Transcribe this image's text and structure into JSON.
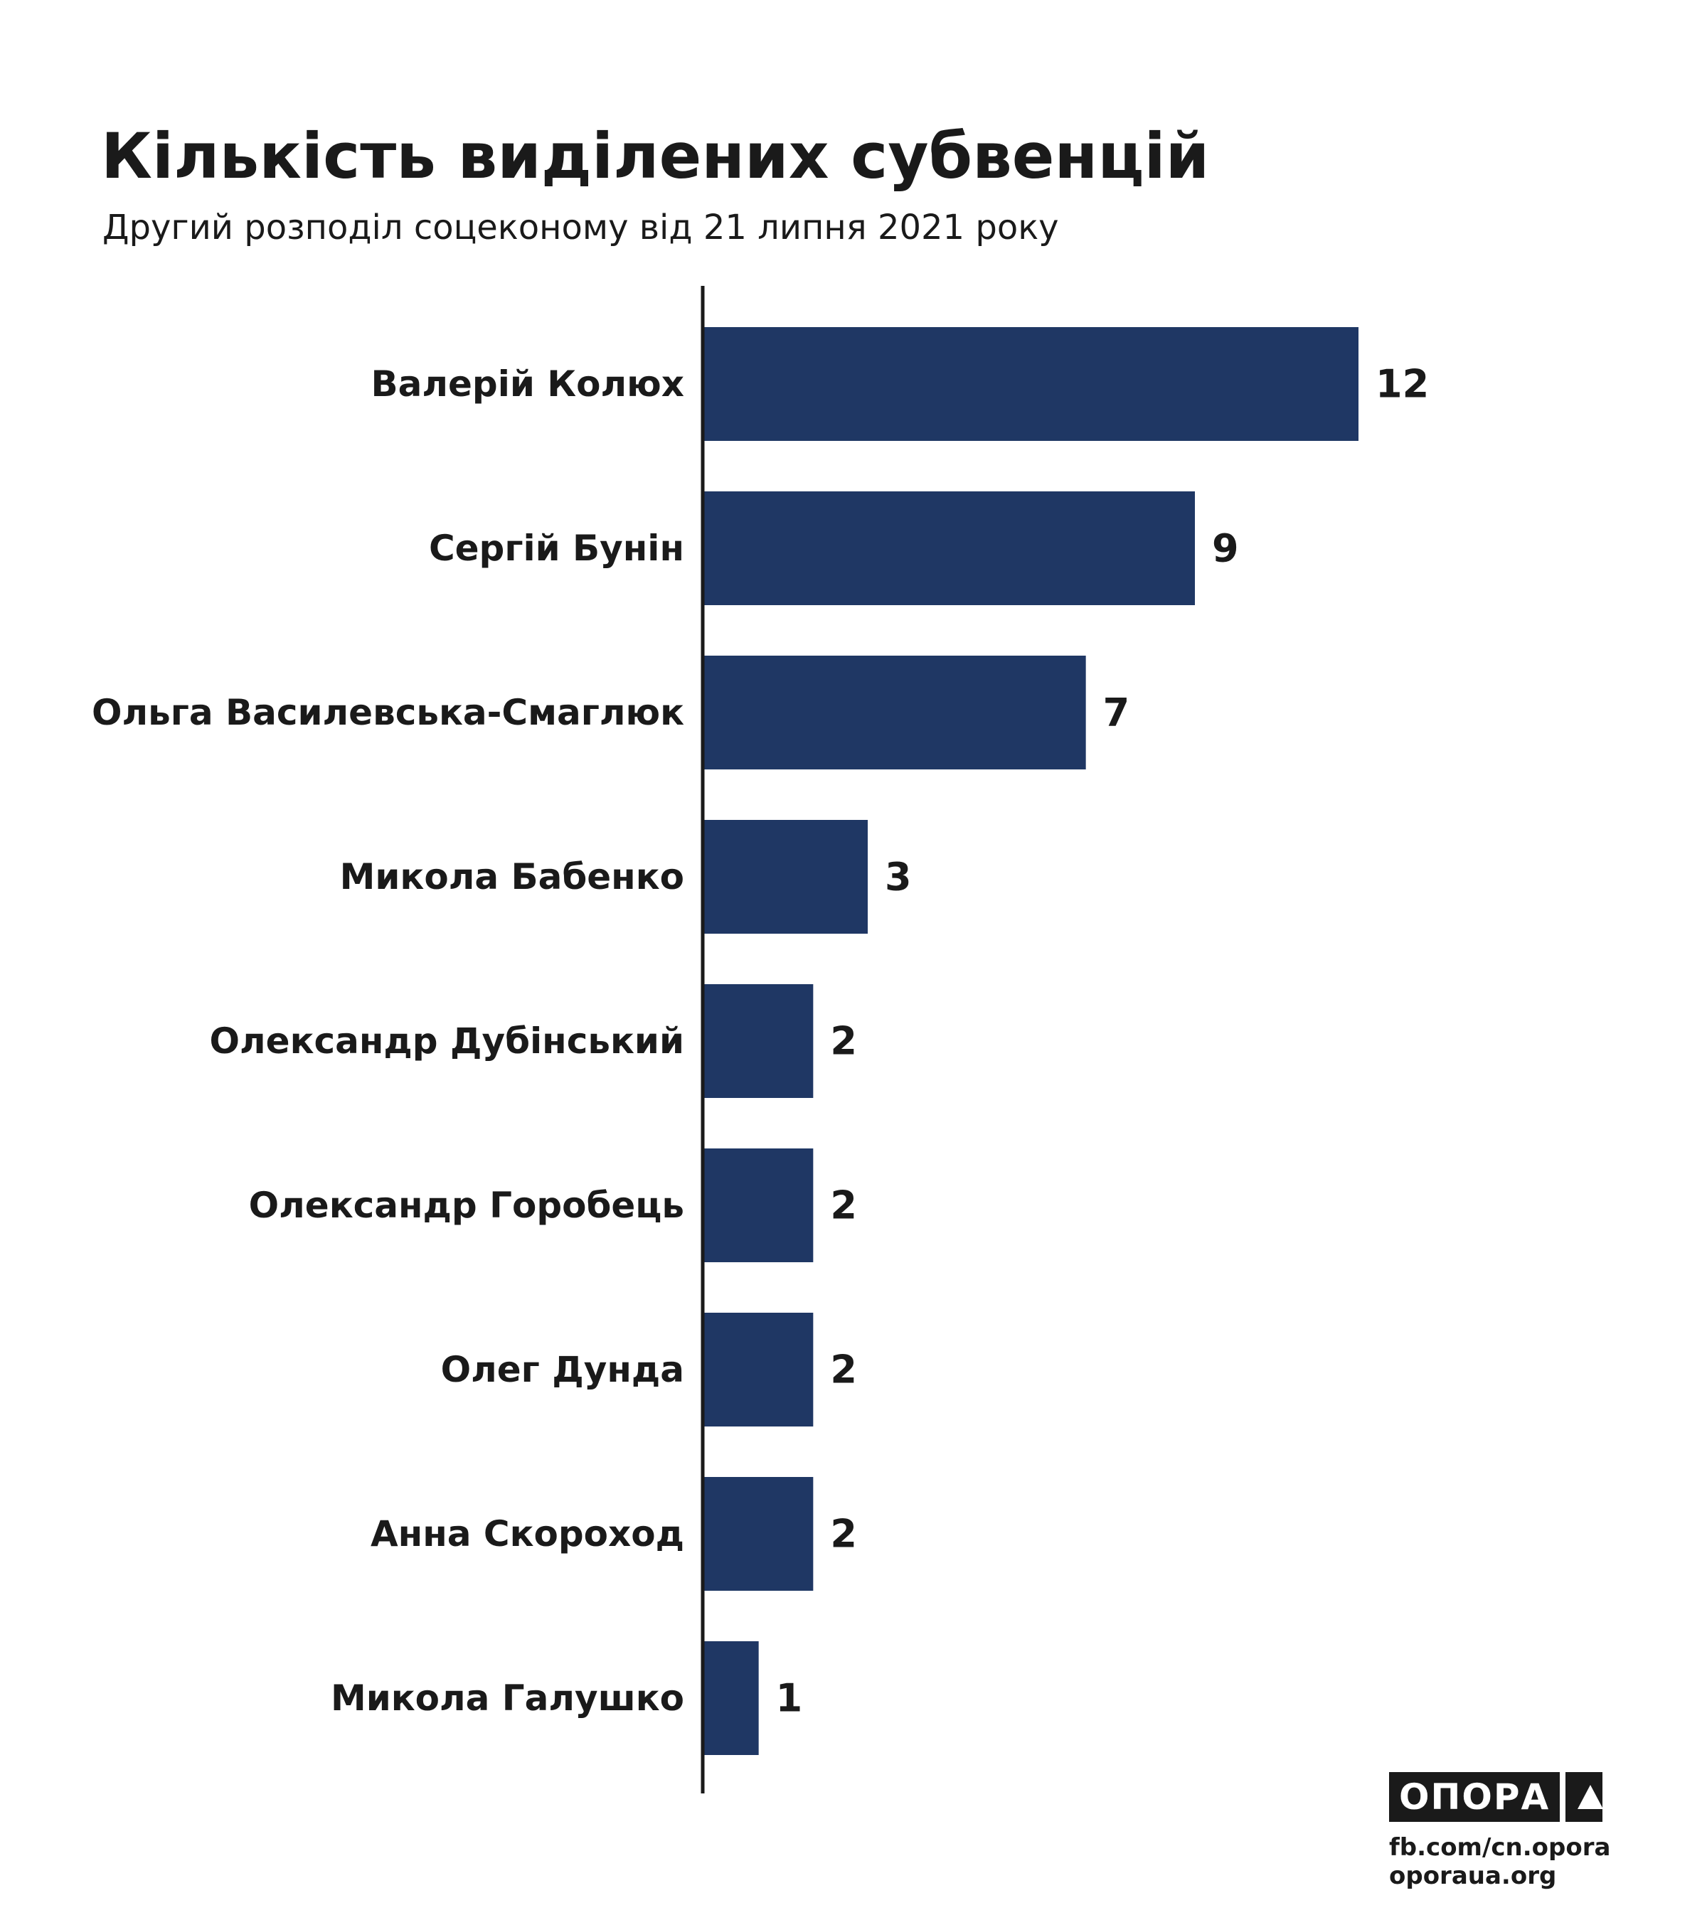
{
  "chart_data": {
    "type": "bar",
    "orientation": "horizontal",
    "title": "Кількість виділених субвенцій",
    "subtitle": "Другий розподіл соцеконому від 21 липня 2021 року",
    "categories": [
      "Валерій Колюх",
      "Сергій Бунін",
      "Ольга Василевська-Смаглюк",
      "Микола Бабенко",
      "Олександр Дубінський",
      "Олександр Горобець",
      "Олег Дунда",
      "Анна Скороход",
      "Микола Галушко"
    ],
    "values": [
      12,
      9,
      7,
      3,
      2,
      2,
      2,
      2,
      1
    ],
    "xlim": [
      0,
      12
    ],
    "bar_color": "#1f3764",
    "grid": false,
    "data_labels": true
  },
  "brand": {
    "name": "ОПОРА",
    "link1": "fb.com/cn.opora",
    "link2": "oporaua.org"
  }
}
